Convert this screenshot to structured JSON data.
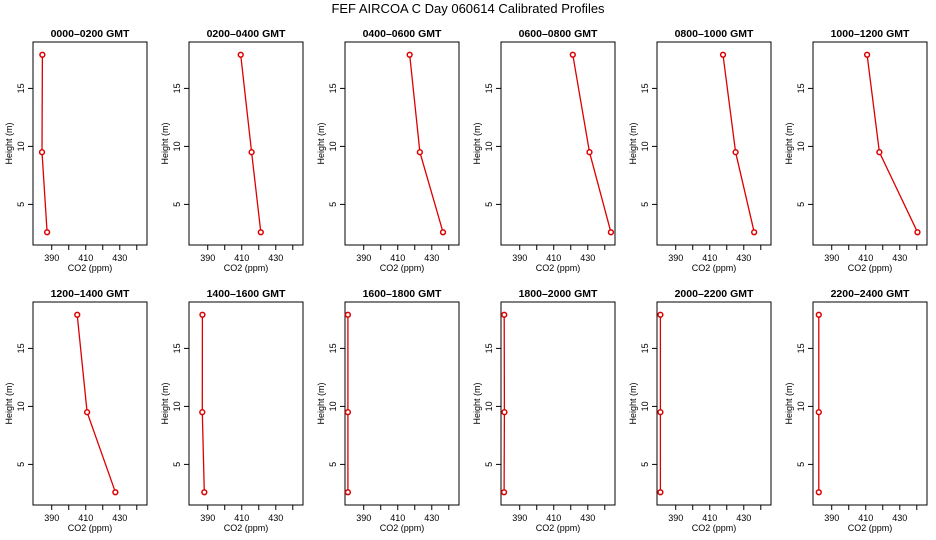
{
  "title": "FEF AIRCOA C  Day 060614  Calibrated Profiles",
  "colors": {
    "profile": "#dd0000",
    "axis": "#000000",
    "background": "#ffffff"
  },
  "chart_data": [
    {
      "type": "line",
      "title": "0000–0200 GMT",
      "xlabel": "CO2 (ppm)",
      "ylabel": "Height (m)",
      "xlim": [
        379,
        446
      ],
      "ylim": [
        1.5,
        19
      ],
      "xticks": [
        390,
        410,
        430
      ],
      "yticks": [
        5,
        10,
        15
      ],
      "x": [
        384.5,
        384.3,
        387.3
      ],
      "y": [
        17.9,
        9.5,
        2.6
      ]
    },
    {
      "type": "line",
      "title": "0200–0400 GMT",
      "xlabel": "CO2 (ppm)",
      "ylabel": "Height (m)",
      "xlim": [
        379,
        446
      ],
      "ylim": [
        1.5,
        19
      ],
      "xticks": [
        390,
        410,
        430
      ],
      "yticks": [
        5,
        10,
        15
      ],
      "x": [
        409.4,
        415.8,
        421.2
      ],
      "y": [
        17.9,
        9.5,
        2.6
      ]
    },
    {
      "type": "line",
      "title": "0400–0600 GMT",
      "xlabel": "CO2 (ppm)",
      "ylabel": "Height (m)",
      "xlim": [
        379,
        446
      ],
      "ylim": [
        1.5,
        19
      ],
      "xticks": [
        390,
        410,
        430
      ],
      "yticks": [
        5,
        10,
        15
      ],
      "x": [
        417.0,
        423.0,
        436.6
      ],
      "y": [
        17.9,
        9.5,
        2.6
      ]
    },
    {
      "type": "line",
      "title": "0600–0800 GMT",
      "xlabel": "CO2 (ppm)",
      "ylabel": "Height (m)",
      "xlim": [
        379,
        446
      ],
      "ylim": [
        1.5,
        19
      ],
      "xticks": [
        390,
        410,
        430
      ],
      "yticks": [
        5,
        10,
        15
      ],
      "x": [
        421.2,
        431.0,
        443.6
      ],
      "y": [
        17.9,
        9.5,
        2.6
      ]
    },
    {
      "type": "line",
      "title": "0800–1000 GMT",
      "xlabel": "CO2 (ppm)",
      "ylabel": "Height (m)",
      "xlim": [
        379,
        446
      ],
      "ylim": [
        1.5,
        19
      ],
      "xticks": [
        390,
        410,
        430
      ],
      "yticks": [
        5,
        10,
        15
      ],
      "x": [
        417.8,
        425.2,
        436.1
      ],
      "y": [
        17.9,
        9.5,
        2.6
      ]
    },
    {
      "type": "line",
      "title": "1000–1200 GMT",
      "xlabel": "CO2 (ppm)",
      "ylabel": "Height (m)",
      "xlim": [
        379,
        446
      ],
      "ylim": [
        1.5,
        19
      ],
      "xticks": [
        390,
        410,
        430
      ],
      "yticks": [
        5,
        10,
        15
      ],
      "x": [
        410.8,
        418.0,
        440.4
      ],
      "y": [
        17.9,
        9.5,
        2.6
      ]
    },
    {
      "type": "line",
      "title": "1200–1400 GMT",
      "xlabel": "CO2 (ppm)",
      "ylabel": "Height (m)",
      "xlim": [
        379,
        446
      ],
      "ylim": [
        1.5,
        19
      ],
      "xticks": [
        390,
        410,
        430
      ],
      "yticks": [
        5,
        10,
        15
      ],
      "x": [
        405.0,
        410.8,
        427.4
      ],
      "y": [
        17.9,
        9.5,
        2.6
      ]
    },
    {
      "type": "line",
      "title": "1400–1600 GMT",
      "xlabel": "CO2 (ppm)",
      "ylabel": "Height (m)",
      "xlim": [
        379,
        446
      ],
      "ylim": [
        1.5,
        19
      ],
      "xticks": [
        390,
        410,
        430
      ],
      "yticks": [
        5,
        10,
        15
      ],
      "x": [
        386.9,
        386.8,
        388.0
      ],
      "y": [
        17.9,
        9.5,
        2.6
      ]
    },
    {
      "type": "line",
      "title": "1600–1800 GMT",
      "xlabel": "CO2 (ppm)",
      "ylabel": "Height (m)",
      "xlim": [
        379,
        446
      ],
      "ylim": [
        1.5,
        19
      ],
      "xticks": [
        390,
        410,
        430
      ],
      "yticks": [
        5,
        10,
        15
      ],
      "x": [
        380.7,
        380.7,
        380.7
      ],
      "y": [
        17.9,
        9.5,
        2.6
      ]
    },
    {
      "type": "line",
      "title": "1800–2000 GMT",
      "xlabel": "CO2 (ppm)",
      "ylabel": "Height (m)",
      "xlim": [
        379,
        446
      ],
      "ylim": [
        1.5,
        19
      ],
      "xticks": [
        390,
        410,
        430
      ],
      "yticks": [
        5,
        10,
        15
      ],
      "x": [
        380.9,
        381.0,
        380.8
      ],
      "y": [
        17.9,
        9.5,
        2.6
      ]
    },
    {
      "type": "line",
      "title": "2000–2200 GMT",
      "xlabel": "CO2 (ppm)",
      "ylabel": "Height (m)",
      "xlim": [
        379,
        446
      ],
      "ylim": [
        1.5,
        19
      ],
      "xticks": [
        390,
        410,
        430
      ],
      "yticks": [
        5,
        10,
        15
      ],
      "x": [
        381.0,
        381.0,
        381.0
      ],
      "y": [
        17.9,
        9.5,
        2.6
      ]
    },
    {
      "type": "line",
      "title": "2200–2400 GMT",
      "xlabel": "CO2 (ppm)",
      "ylabel": "Height (m)",
      "xlim": [
        379,
        446
      ],
      "ylim": [
        1.5,
        19
      ],
      "xticks": [
        390,
        410,
        430
      ],
      "yticks": [
        5,
        10,
        15
      ],
      "x": [
        382.4,
        382.4,
        382.4
      ],
      "y": [
        17.9,
        9.5,
        2.6
      ]
    }
  ]
}
